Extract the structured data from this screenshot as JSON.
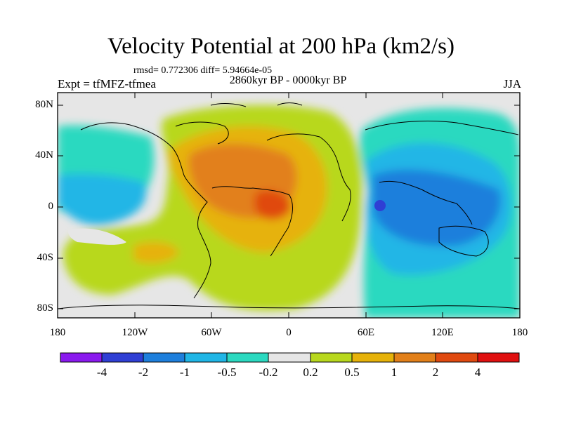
{
  "title": "Velocity Potential at 200 hPa (km2/s)",
  "stats": "rmsd= 0.772306 diff= 5.94664e-05",
  "left_label": "Expt = tfMFZ-tfmea",
  "center_label": "2860kyr BP - 0000kyr BP",
  "right_label": "JJA",
  "y_ticks": [
    "80N",
    "40N",
    "0",
    "40S",
    "80S"
  ],
  "x_ticks": [
    "180",
    "120W",
    "60W",
    "0",
    "60E",
    "120E",
    "180"
  ],
  "colorbar": {
    "colors": [
      "#8a1aee",
      "#2f3fd4",
      "#1e7fdc",
      "#20b6e6",
      "#2bd9c0",
      "#e6e6e6",
      "#b8d81e",
      "#e6b20a",
      "#e2801a",
      "#e04a10",
      "#e01010"
    ],
    "labels": [
      "-4",
      "-2",
      "-1",
      "-0.5",
      "-0.2",
      "0.2",
      "0.5",
      "1",
      "2",
      "4"
    ]
  }
}
